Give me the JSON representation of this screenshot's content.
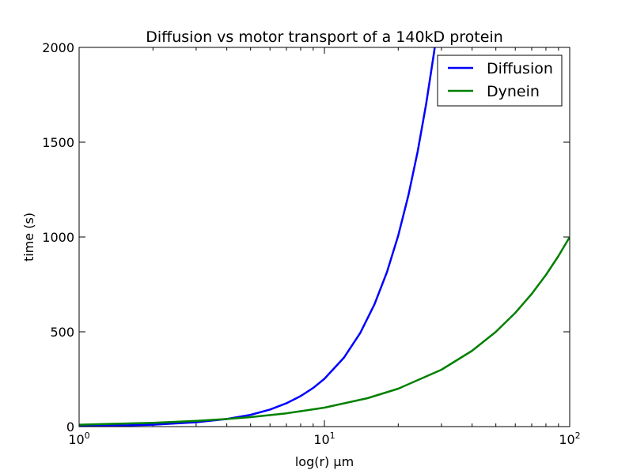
{
  "chart_data": {
    "type": "line",
    "title": "Diffusion vs motor transport of a 140kD protein",
    "xlabel": "log(r) μm",
    "ylabel": "time (s)",
    "xscale": "log",
    "xlim": [
      1,
      100
    ],
    "ylim": [
      0,
      2000
    ],
    "x_ticks": [
      1,
      10,
      100
    ],
    "x_tick_labels": [
      {
        "base": "10",
        "exp": "0"
      },
      {
        "base": "10",
        "exp": "1"
      },
      {
        "base": "10",
        "exp": "2"
      }
    ],
    "y_ticks": [
      0,
      500,
      1000,
      1500,
      2000
    ],
    "y_tick_labels": [
      "0",
      "500",
      "1000",
      "1500",
      "2000"
    ],
    "grid": false,
    "legend_position": "top-right",
    "series": [
      {
        "name": "Diffusion",
        "color": "#0000ff",
        "x": [
          1,
          1.5,
          2,
          3,
          4,
          5,
          6,
          7,
          8,
          9,
          10,
          12,
          14,
          16,
          18,
          20,
          22,
          24,
          26,
          28,
          29
        ],
        "values": [
          3,
          6,
          10,
          23,
          40,
          62,
          90,
          123,
          161,
          204,
          252,
          363,
          494,
          645,
          816,
          1008,
          1220,
          1451,
          1703,
          1975,
          2119
        ]
      },
      {
        "name": "Dynein",
        "color": "#008000",
        "x": [
          1,
          2,
          3,
          4,
          5,
          7,
          10,
          15,
          20,
          30,
          40,
          50,
          60,
          70,
          80,
          90,
          100
        ],
        "values": [
          10,
          20,
          30,
          40,
          50,
          70,
          100,
          150,
          200,
          300,
          400,
          500,
          600,
          700,
          800,
          900,
          1000
        ]
      }
    ]
  }
}
